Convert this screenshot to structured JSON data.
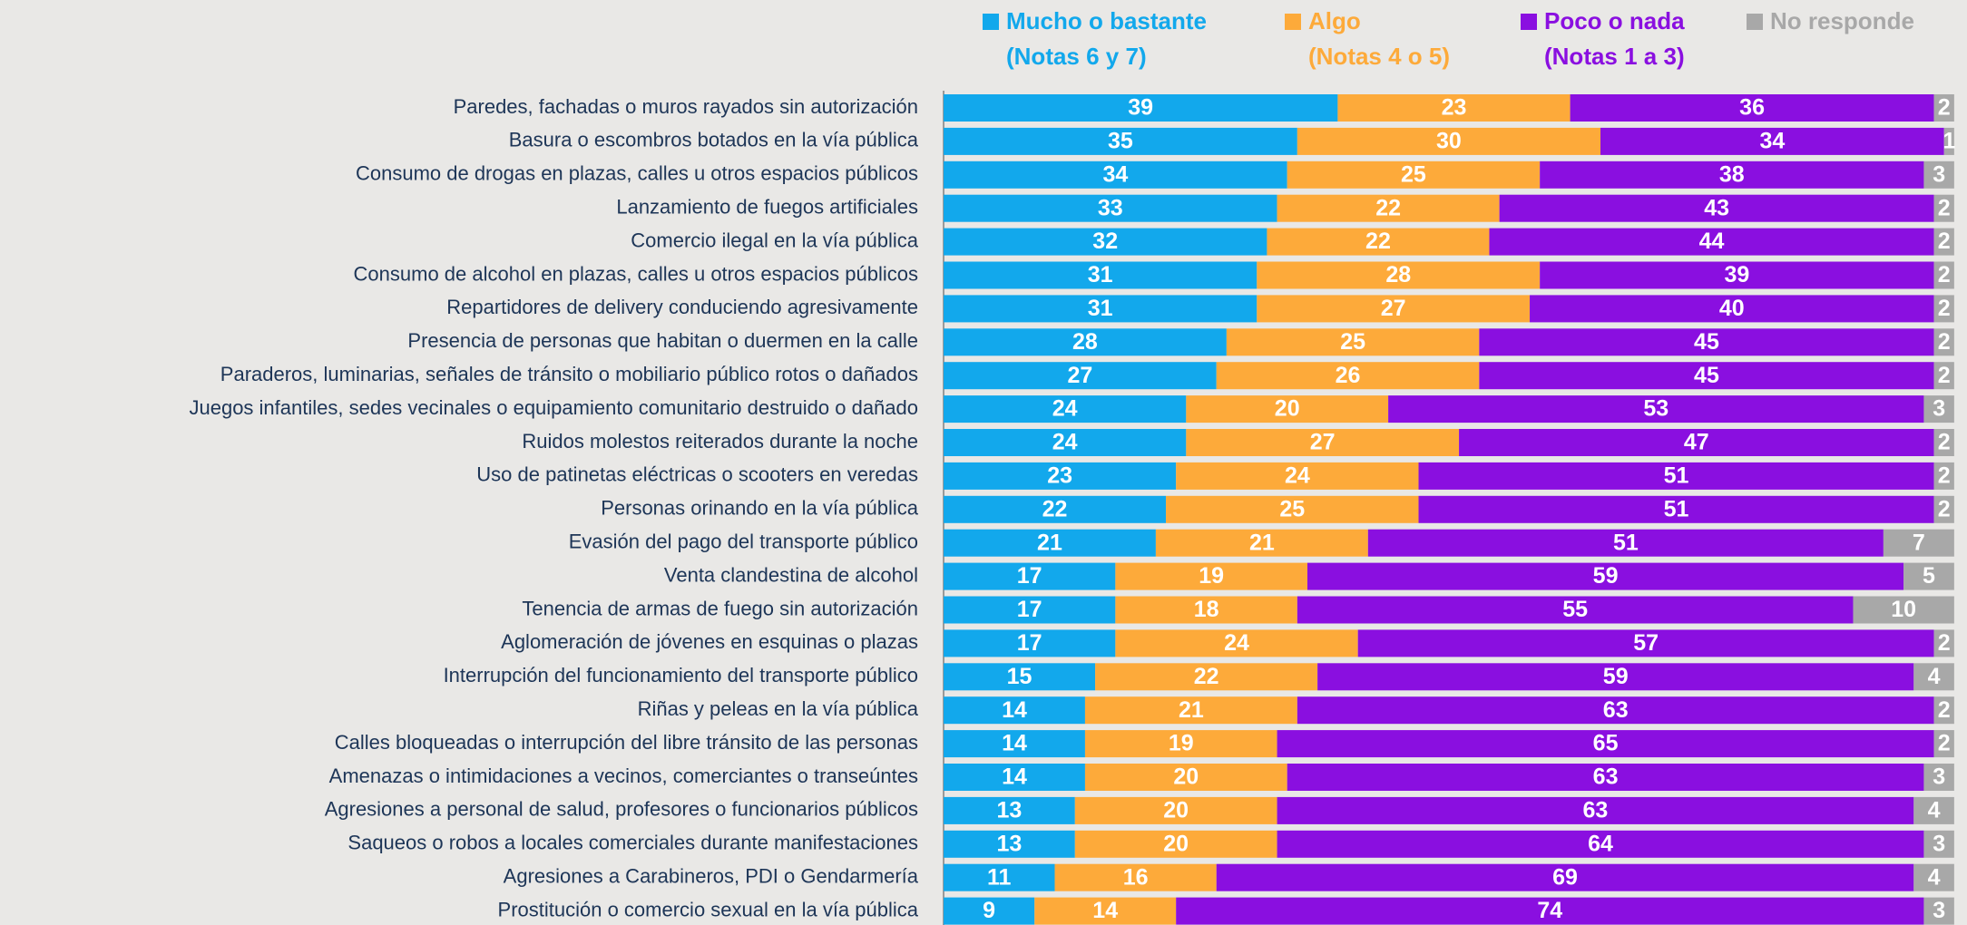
{
  "chart_data": {
    "type": "stacked-bar-horizontal",
    "categories": [
      "Paredes, fachadas o muros rayados sin autorización",
      "Basura o escombros botados en la vía pública",
      "Consumo de drogas en plazas, calles u otros espacios públicos",
      "Lanzamiento de fuegos artificiales",
      "Comercio ilegal en la vía pública",
      "Consumo de alcohol en plazas, calles u otros espacios públicos",
      "Repartidores de delivery conduciendo agresivamente",
      "Presencia de personas que habitan o duermen en la calle",
      "Paraderos, luminarias, señales de tránsito o mobiliario público rotos o dañados",
      "Juegos infantiles, sedes vecinales o equipamiento comunitario destruido o dañado",
      "Ruidos molestos reiterados durante la noche",
      "Uso de patinetas eléctricas o scooters en veredas",
      "Personas orinando en la vía pública",
      "Evasión del pago del transporte público",
      "Venta clandestina de alcohol",
      "Tenencia de armas de fuego sin autorización",
      "Aglomeración de jóvenes en esquinas o plazas",
      "Interrupción del funcionamiento del transporte público",
      "Riñas y peleas en la vía pública",
      "Calles bloqueadas o interrupción del libre tránsito de las personas",
      "Amenazas o intimidaciones a vecinos, comerciantes o transeúntes",
      "Agresiones a personal de salud, profesores o funcionarios públicos",
      "Saqueos o robos a locales comerciales durante manifestaciones",
      "Agresiones a Carabineros, PDI o Gendarmería",
      "Prostitución o comercio sexual en la vía pública"
    ],
    "series": [
      {
        "name": "Mucho o bastante",
        "note": "(Notas 6 y 7)",
        "color": "#12a8ec",
        "values": [
          39,
          35,
          34,
          33,
          32,
          31,
          31,
          28,
          27,
          24,
          24,
          23,
          22,
          21,
          17,
          17,
          17,
          15,
          14,
          14,
          14,
          13,
          13,
          11,
          9
        ]
      },
      {
        "name": "Algo",
        "note": "(Notas 4 o 5)",
        "color": "#fdaa3a",
        "values": [
          23,
          30,
          25,
          22,
          22,
          28,
          27,
          25,
          26,
          20,
          27,
          24,
          25,
          21,
          19,
          18,
          24,
          22,
          21,
          19,
          20,
          20,
          20,
          16,
          14
        ]
      },
      {
        "name": "Poco o nada",
        "note": "(Notas 1 a 3)",
        "color": "#8a0fe0",
        "values": [
          36,
          34,
          38,
          43,
          44,
          39,
          40,
          45,
          45,
          53,
          47,
          51,
          51,
          51,
          59,
          55,
          57,
          59,
          63,
          65,
          63,
          63,
          64,
          69,
          74
        ]
      },
      {
        "name": "No responde",
        "color": "#a8a8a8",
        "values": [
          2,
          1,
          3,
          2,
          2,
          2,
          2,
          2,
          2,
          3,
          2,
          2,
          2,
          7,
          5,
          10,
          2,
          4,
          2,
          2,
          3,
          4,
          3,
          4,
          3
        ]
      }
    ],
    "xlim": [
      0,
      101
    ]
  }
}
